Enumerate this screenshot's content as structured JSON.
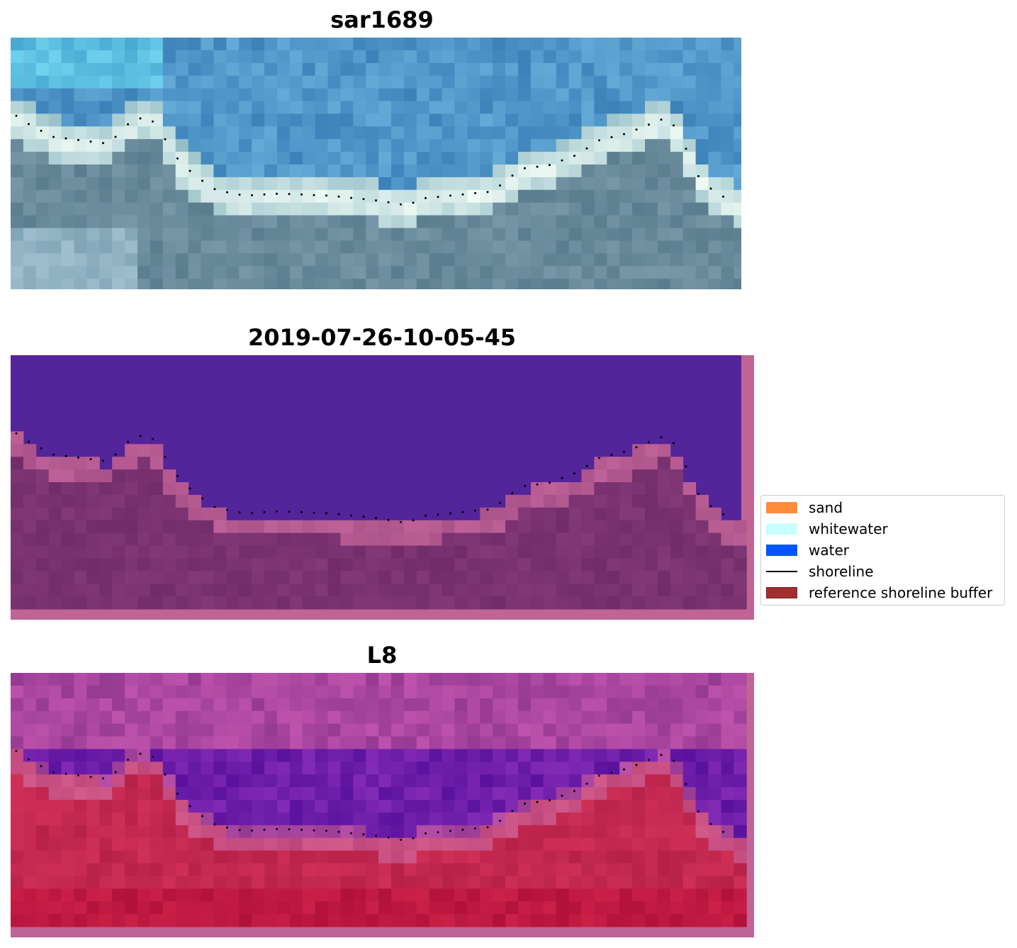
{
  "panels": [
    {
      "title": "sar1689",
      "kind": "rgb-image"
    },
    {
      "title": "2019-07-26-10-05-45",
      "kind": "classified-image"
    },
    {
      "title": "L8",
      "kind": "index-image"
    }
  ],
  "legend": {
    "placement": "center-right",
    "items": [
      {
        "label": "sand",
        "type": "patch",
        "color": "#ff8c3a"
      },
      {
        "label": "whitewater",
        "type": "patch",
        "color": "#c8ffff"
      },
      {
        "label": "water",
        "type": "patch",
        "color": "#0055ff"
      },
      {
        "label": "shoreline",
        "type": "line",
        "color": "#000000"
      },
      {
        "label": "reference shoreline buffer",
        "type": "patch",
        "color": "#a0302e",
        "edge": "#7a1f1d"
      }
    ]
  },
  "colors": {
    "water_class": "#53249a",
    "buffer_tint": "#bf6495",
    "land_class": "#7a3270",
    "shoreline_dots": "#000000"
  }
}
